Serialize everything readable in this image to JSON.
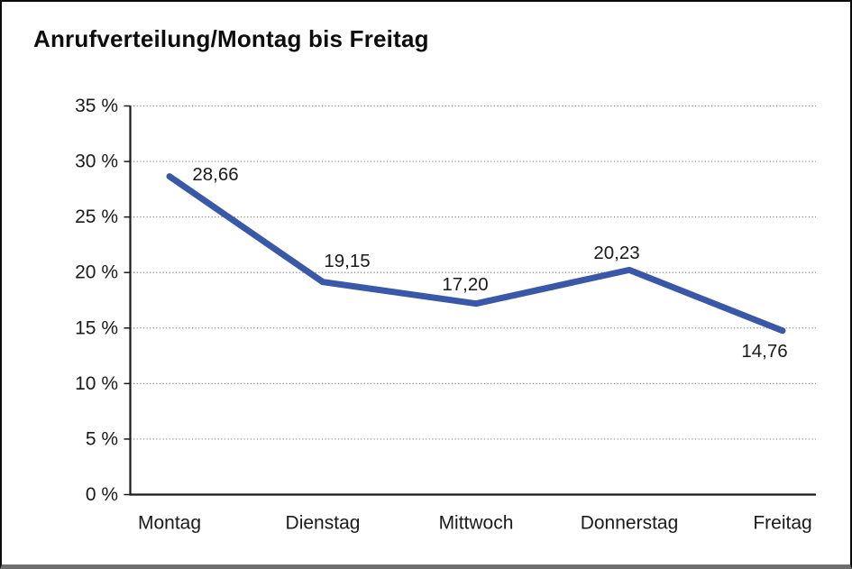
{
  "frame": {
    "background": "#ffffff",
    "border_color": "#0a0a0a",
    "bottom_bar_color": "#6f6f6f"
  },
  "chart_data": {
    "type": "line",
    "title": "Anrufverteilung/Montag bis Freitag",
    "categories": [
      "Montag",
      "Dienstag",
      "Mittwoch",
      "Donnerstag",
      "Freitag"
    ],
    "values": [
      28.66,
      19.15,
      17.2,
      20.23,
      14.76
    ],
    "value_labels": [
      "28,66",
      "19,15",
      "17,20",
      "20,23",
      "14,76"
    ],
    "xlabel": "",
    "ylabel": "",
    "ylim": [
      0,
      35
    ],
    "yticks": [
      0,
      5,
      10,
      15,
      20,
      25,
      30,
      35
    ],
    "ytick_labels": [
      "0 %",
      "5 %",
      "10 %",
      "15 %",
      "20 %",
      "25 %",
      "30 %",
      "35 %"
    ],
    "grid": "horizontal-dotted",
    "legend": "none",
    "line_color": "#3A58A8",
    "axis_color": "#1a1a1a",
    "grid_color": "#878787",
    "text_color": "#1a1a1a"
  }
}
